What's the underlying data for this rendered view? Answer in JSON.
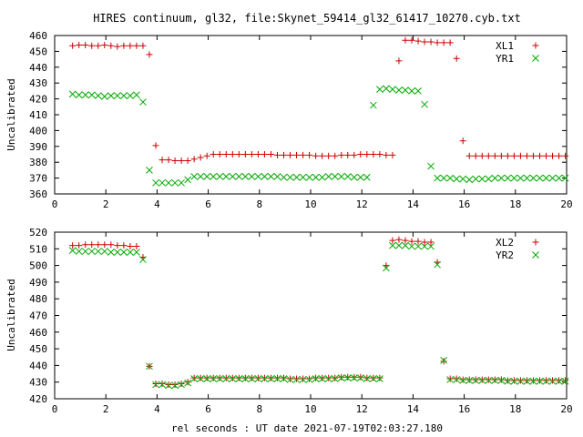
{
  "chart_data": [
    {
      "type": "scatter",
      "title": "HIRES continuum, gl32, file:Skynet_59414_gl32_61417_10270.cyb.txt",
      "xlabel": "",
      "ylabel": "Uncalibrated",
      "xlim": [
        0,
        20
      ],
      "ylim": [
        360,
        460
      ],
      "xticks": [
        0,
        2,
        4,
        6,
        8,
        10,
        12,
        14,
        16,
        18,
        20
      ],
      "yticks": [
        360,
        370,
        380,
        390,
        400,
        410,
        420,
        430,
        440,
        450,
        460
      ],
      "grid": false,
      "legend": "top-right",
      "series": [
        {
          "name": "XL1",
          "marker": "plus",
          "color": "#cc0000",
          "x": [
            0.7,
            0.95,
            1.2,
            1.45,
            1.7,
            1.95,
            2.2,
            2.45,
            2.7,
            2.95,
            3.2,
            3.45,
            3.7,
            3.95,
            4.2,
            4.45,
            4.7,
            4.95,
            5.2,
            5.45,
            5.7,
            5.95,
            6.2,
            6.45,
            6.7,
            6.95,
            7.2,
            7.45,
            7.7,
            7.95,
            8.2,
            8.45,
            8.7,
            8.95,
            9.2,
            9.45,
            9.7,
            9.95,
            10.2,
            10.45,
            10.7,
            10.95,
            11.2,
            11.45,
            11.7,
            11.95,
            12.2,
            12.45,
            12.7,
            12.95,
            13.2,
            13.45,
            13.7,
            13.95,
            14.2,
            14.45,
            14.7,
            14.95,
            15.2,
            15.45,
            15.7,
            15.95,
            16.2,
            16.45,
            16.7,
            16.95,
            17.2,
            17.45,
            17.7,
            17.95,
            18.2,
            18.45,
            18.7,
            18.95,
            19.2,
            19.45,
            19.7,
            19.95
          ],
          "y": [
            453.5,
            454,
            454,
            453.5,
            453.5,
            454,
            453.5,
            453,
            453.5,
            453.5,
            453.5,
            453.5,
            448,
            390.5,
            381.5,
            381.5,
            381,
            381,
            381,
            382,
            383,
            384,
            385,
            385,
            385,
            385,
            385,
            385,
            385,
            385,
            385,
            385,
            384.5,
            384.5,
            384.5,
            384.5,
            384.5,
            384.5,
            384,
            384,
            384,
            384,
            384.5,
            384.5,
            384.5,
            385,
            385,
            385,
            385,
            384.5,
            384.5,
            444,
            457,
            457,
            456.5,
            456,
            456,
            455.5,
            455.5,
            455.5,
            445.5,
            393.5,
            384,
            384,
            384,
            384,
            384,
            384,
            384,
            384,
            384,
            384,
            384,
            384,
            384,
            384,
            384,
            384
          ]
        },
        {
          "name": "YR1",
          "marker": "cross",
          "color": "#00aa00",
          "x": [
            0.7,
            0.95,
            1.2,
            1.45,
            1.7,
            1.95,
            2.2,
            2.45,
            2.7,
            2.95,
            3.2,
            3.45,
            3.7,
            3.95,
            4.2,
            4.45,
            4.7,
            4.95,
            5.2,
            5.45,
            5.7,
            5.95,
            6.2,
            6.45,
            6.7,
            6.95,
            7.2,
            7.45,
            7.7,
            7.95,
            8.2,
            8.45,
            8.7,
            8.95,
            9.2,
            9.45,
            9.7,
            9.95,
            10.2,
            10.45,
            10.7,
            10.95,
            11.2,
            11.45,
            11.7,
            11.95,
            12.2,
            12.45,
            12.7,
            12.95,
            13.2,
            13.45,
            13.7,
            13.95,
            14.2,
            14.45,
            14.7,
            14.95,
            15.2,
            15.45,
            15.7,
            15.95,
            16.2,
            16.45,
            16.7,
            16.95,
            17.2,
            17.45,
            17.7,
            17.95,
            18.2,
            18.45,
            18.7,
            18.95,
            19.2,
            19.45,
            19.7,
            19.95
          ],
          "y": [
            423,
            422.5,
            422.5,
            422.5,
            422,
            421.5,
            422,
            422,
            422,
            422,
            422.5,
            418,
            375,
            367,
            367,
            367,
            367,
            367,
            369,
            371,
            371,
            371,
            371,
            371,
            371,
            371,
            371,
            371,
            371,
            371,
            371,
            371,
            371,
            370.5,
            370.5,
            370.5,
            370.5,
            370.5,
            370.5,
            370.5,
            371,
            371,
            371,
            371,
            370.5,
            370.5,
            370.5,
            416,
            426,
            426.5,
            426,
            425.5,
            425.5,
            425,
            425,
            416.5,
            377.5,
            370,
            370,
            370,
            369.5,
            369.5,
            369,
            369.5,
            369.5,
            369.5,
            370,
            370,
            370,
            370,
            370,
            370,
            370,
            370,
            370,
            370,
            370,
            370
          ]
        }
      ]
    },
    {
      "type": "scatter",
      "title": "",
      "xlabel": "rel seconds : UT date 2021-07-19T02:03:27.180",
      "ylabel": "Uncalibrated",
      "xlim": [
        0,
        20
      ],
      "ylim": [
        420,
        520
      ],
      "xticks": [
        0,
        2,
        4,
        6,
        8,
        10,
        12,
        14,
        16,
        18,
        20
      ],
      "yticks": [
        420,
        430,
        440,
        450,
        460,
        470,
        480,
        490,
        500,
        510,
        520
      ],
      "grid": false,
      "legend": "top-right",
      "series": [
        {
          "name": "XL2",
          "marker": "plus",
          "color": "#cc0000",
          "x": [
            0.7,
            0.95,
            1.2,
            1.45,
            1.7,
            1.95,
            2.2,
            2.45,
            2.7,
            2.95,
            3.2,
            3.45,
            3.7,
            3.95,
            4.2,
            4.45,
            4.7,
            4.95,
            5.2,
            5.45,
            5.7,
            5.95,
            6.2,
            6.45,
            6.7,
            6.95,
            7.2,
            7.45,
            7.7,
            7.95,
            8.2,
            8.45,
            8.7,
            8.95,
            9.2,
            9.45,
            9.7,
            9.95,
            10.2,
            10.45,
            10.7,
            10.95,
            11.2,
            11.45,
            11.7,
            11.95,
            12.2,
            12.45,
            12.7,
            12.95,
            13.2,
            13.45,
            13.7,
            13.95,
            14.2,
            14.45,
            14.7,
            14.95,
            15.2,
            15.45,
            15.7,
            15.95,
            16.2,
            16.45,
            16.7,
            16.95,
            17.2,
            17.45,
            17.7,
            17.95,
            18.2,
            18.45,
            18.7,
            18.95,
            19.2,
            19.45,
            19.7,
            19.95
          ],
          "y": [
            512,
            512,
            512.5,
            512.5,
            512.5,
            512.5,
            512.5,
            512,
            512,
            511.5,
            511.5,
            505,
            439.5,
            429,
            429,
            428.5,
            428.5,
            429,
            430,
            432.5,
            432.5,
            432.5,
            432.5,
            432.5,
            432.5,
            432.5,
            432.5,
            432.5,
            432.5,
            432.5,
            432.5,
            432.5,
            432.5,
            432.5,
            432,
            432,
            432,
            432,
            432.5,
            432.5,
            432.5,
            432.5,
            433,
            433,
            433,
            433,
            432.5,
            432.5,
            432.5,
            500,
            515,
            515.5,
            515,
            514.5,
            514.5,
            514,
            514,
            502,
            442.5,
            432,
            432,
            431.5,
            431.5,
            431.5,
            431.5,
            431.5,
            431.5,
            431.5,
            431,
            431,
            431,
            431,
            431,
            431,
            431,
            431,
            431,
            431
          ]
        },
        {
          "name": "YR2",
          "marker": "cross",
          "color": "#00aa00",
          "x": [
            0.7,
            0.95,
            1.2,
            1.45,
            1.7,
            1.95,
            2.2,
            2.45,
            2.7,
            2.95,
            3.2,
            3.45,
            3.7,
            3.95,
            4.2,
            4.45,
            4.7,
            4.95,
            5.2,
            5.45,
            5.7,
            5.95,
            6.2,
            6.45,
            6.7,
            6.95,
            7.2,
            7.45,
            7.7,
            7.95,
            8.2,
            8.45,
            8.7,
            8.95,
            9.2,
            9.45,
            9.7,
            9.95,
            10.2,
            10.45,
            10.7,
            10.95,
            11.2,
            11.45,
            11.7,
            11.95,
            12.2,
            12.45,
            12.7,
            12.95,
            13.2,
            13.45,
            13.7,
            13.95,
            14.2,
            14.45,
            14.7,
            14.95,
            15.2,
            15.45,
            15.7,
            15.95,
            16.2,
            16.45,
            16.7,
            16.95,
            17.2,
            17.45,
            17.7,
            17.95,
            18.2,
            18.45,
            18.7,
            18.95,
            19.2,
            19.45,
            19.7,
            19.95
          ],
          "y": [
            509,
            508.5,
            508.5,
            508.5,
            508.5,
            508.5,
            508,
            508,
            508,
            508,
            508,
            503.5,
            439.5,
            428.5,
            428.5,
            428,
            428,
            428.5,
            429.5,
            432,
            432,
            432,
            432,
            432,
            432,
            432,
            432,
            432,
            432,
            432,
            432,
            432,
            432,
            432,
            431.5,
            431.5,
            431.5,
            431.5,
            432,
            432,
            432,
            432,
            432.5,
            432.5,
            432.5,
            432.5,
            432,
            432,
            432,
            498.5,
            512,
            512,
            512,
            511.5,
            511.5,
            511.5,
            511.5,
            500.5,
            443,
            431.5,
            431.5,
            431,
            431,
            431,
            431,
            431,
            431,
            431,
            430.5,
            430.5,
            430.5,
            430.5,
            430.5,
            430.5,
            430.5,
            430.5,
            430.5,
            430.5
          ]
        }
      ]
    }
  ]
}
